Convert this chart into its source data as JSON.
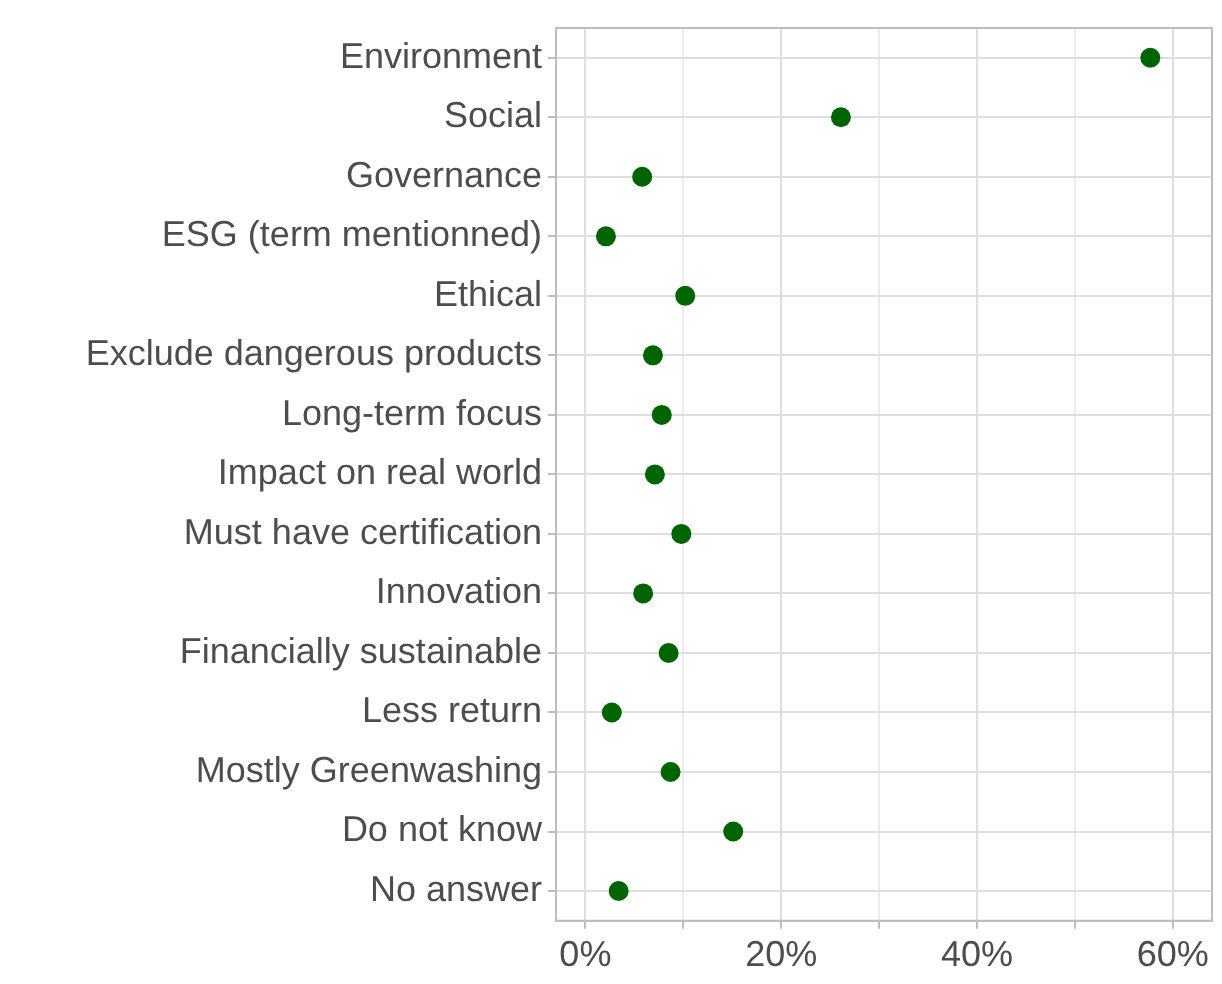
{
  "chart_data": {
    "type": "scatter",
    "orientation": "horizontal",
    "categories": [
      "Environment",
      "Social",
      "Governance",
      "ESG (term mentionned)",
      "Ethical",
      "Exclude dangerous products",
      "Long-term focus",
      "Impact on real world",
      "Must have certification",
      "Innovation",
      "Financially sustainable",
      "Less return",
      "Mostly Greenwashing",
      "Do not know",
      "No answer"
    ],
    "values": [
      57.7,
      26.1,
      5.8,
      2.1,
      10.2,
      6.9,
      7.8,
      7.1,
      9.8,
      5.9,
      8.5,
      2.7,
      8.7,
      15.1,
      3.4
    ],
    "color": "#006400",
    "marker": "circle",
    "grid": true,
    "xlim": [
      -3,
      64
    ],
    "xticks": [
      {
        "value": 0,
        "label": "0%"
      },
      {
        "value": 10,
        "label": null
      },
      {
        "value": 20,
        "label": "20%"
      },
      {
        "value": 30,
        "label": null
      },
      {
        "value": 40,
        "label": "40%"
      },
      {
        "value": 50,
        "label": null
      },
      {
        "value": 60,
        "label": "60%"
      }
    ]
  }
}
